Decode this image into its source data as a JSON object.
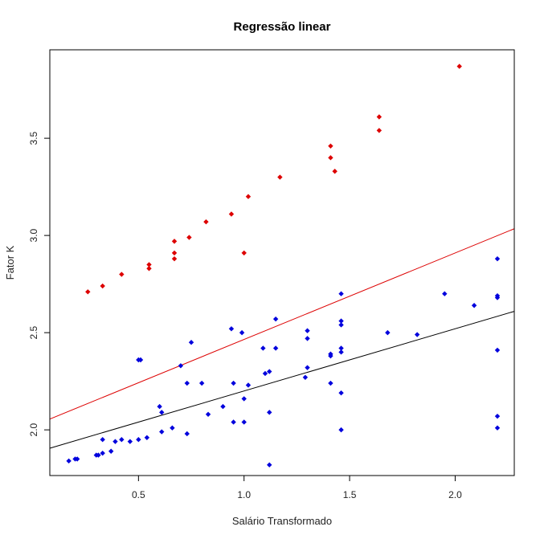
{
  "chart_data": {
    "type": "scatter",
    "title": "Regressão linear",
    "xlabel": "Salário Transformado",
    "ylabel": "Fator K",
    "xlim": [
      0.08,
      2.28
    ],
    "ylim": [
      1.765,
      3.955
    ],
    "x_ticks": [
      0.5,
      1.0,
      1.5,
      2.0
    ],
    "x_tick_labels": [
      "0.5",
      "1.0",
      "1.5",
      "2.0"
    ],
    "y_ticks": [
      2.0,
      2.5,
      3.0,
      3.5
    ],
    "y_tick_labels": [
      "2.0",
      "2.5",
      "3.0",
      "3.5"
    ],
    "grid": false,
    "series": [
      {
        "color": "#dd0000",
        "marker": "diamond",
        "points": [
          [
            0.26,
            2.71
          ],
          [
            0.33,
            2.74
          ],
          [
            0.42,
            2.8
          ],
          [
            0.55,
            2.85
          ],
          [
            0.55,
            2.83
          ],
          [
            0.67,
            2.97
          ],
          [
            0.67,
            2.91
          ],
          [
            0.67,
            2.88
          ],
          [
            0.74,
            2.99
          ],
          [
            0.82,
            3.07
          ],
          [
            0.94,
            3.11
          ],
          [
            1.0,
            2.91
          ],
          [
            1.02,
            3.2
          ],
          [
            1.17,
            3.3
          ],
          [
            1.41,
            3.46
          ],
          [
            1.41,
            3.4
          ],
          [
            1.43,
            3.33
          ],
          [
            1.64,
            3.61
          ],
          [
            1.64,
            3.54
          ],
          [
            2.02,
            3.87
          ]
        ]
      },
      {
        "color": "#0000dd",
        "marker": "diamond",
        "points": [
          [
            0.17,
            1.84
          ],
          [
            0.2,
            1.85
          ],
          [
            0.21,
            1.85
          ],
          [
            0.3,
            1.87
          ],
          [
            0.31,
            1.87
          ],
          [
            0.33,
            1.88
          ],
          [
            0.33,
            1.95
          ],
          [
            0.37,
            1.89
          ],
          [
            0.39,
            1.94
          ],
          [
            0.42,
            1.95
          ],
          [
            0.46,
            1.94
          ],
          [
            0.5,
            1.95
          ],
          [
            0.5,
            2.36
          ],
          [
            0.51,
            2.36
          ],
          [
            0.54,
            1.96
          ],
          [
            0.6,
            2.12
          ],
          [
            0.61,
            2.09
          ],
          [
            0.61,
            1.99
          ],
          [
            0.66,
            2.01
          ],
          [
            0.7,
            2.33
          ],
          [
            0.73,
            2.24
          ],
          [
            0.73,
            1.98
          ],
          [
            0.75,
            2.45
          ],
          [
            0.8,
            2.24
          ],
          [
            0.83,
            2.08
          ],
          [
            0.9,
            2.12
          ],
          [
            0.94,
            2.52
          ],
          [
            0.95,
            2.24
          ],
          [
            0.95,
            2.04
          ],
          [
            0.99,
            2.5
          ],
          [
            1.0,
            2.16
          ],
          [
            1.0,
            2.04
          ],
          [
            1.02,
            2.23
          ],
          [
            1.09,
            2.42
          ],
          [
            1.1,
            2.29
          ],
          [
            1.12,
            2.3
          ],
          [
            1.12,
            2.09
          ],
          [
            1.12,
            1.82
          ],
          [
            1.15,
            2.57
          ],
          [
            1.15,
            2.42
          ],
          [
            1.29,
            2.27
          ],
          [
            1.3,
            2.51
          ],
          [
            1.3,
            2.47
          ],
          [
            1.3,
            2.32
          ],
          [
            1.41,
            2.39
          ],
          [
            1.41,
            2.38
          ],
          [
            1.41,
            2.24
          ],
          [
            1.46,
            2.7
          ],
          [
            1.46,
            2.56
          ],
          [
            1.46,
            2.54
          ],
          [
            1.46,
            2.42
          ],
          [
            1.46,
            2.4
          ],
          [
            1.46,
            2.19
          ],
          [
            1.46,
            2.0
          ],
          [
            1.68,
            2.5
          ],
          [
            1.82,
            2.49
          ],
          [
            1.95,
            2.7
          ],
          [
            2.09,
            2.64
          ],
          [
            2.2,
            2.88
          ],
          [
            2.2,
            2.69
          ],
          [
            2.2,
            2.68
          ],
          [
            2.2,
            2.41
          ],
          [
            2.2,
            2.07
          ],
          [
            2.2,
            2.01
          ]
        ]
      }
    ],
    "lines": [
      {
        "color": "#dd0000",
        "intercept": 2.02,
        "slope": 0.445
      },
      {
        "color": "#000000",
        "intercept": 1.88,
        "slope": 0.32
      }
    ]
  }
}
